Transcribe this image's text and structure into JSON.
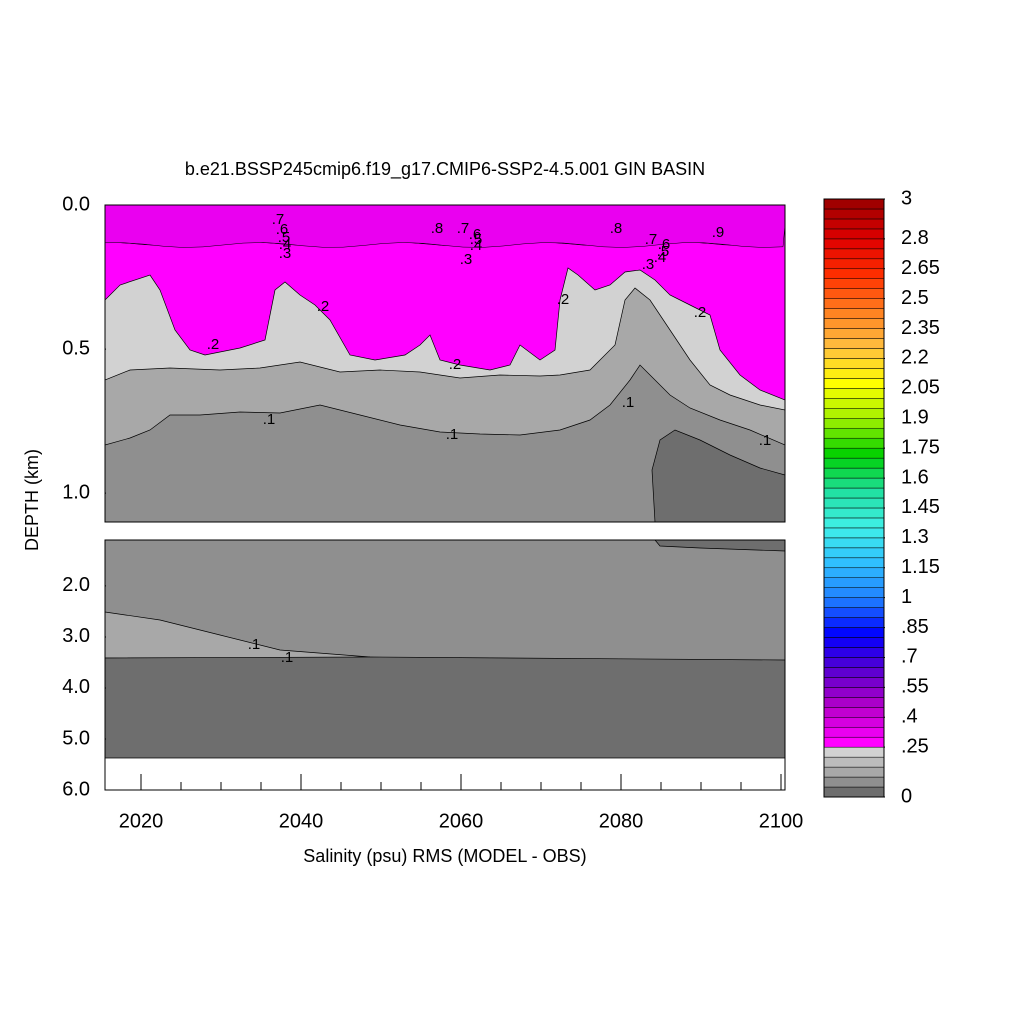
{
  "chart_data": {
    "type": "contour",
    "title": "b.e21.BSSP245cmip6.f19_g17.CMIP6-SSP2-4.5.001 GIN BASIN",
    "x_label": "Salinity (psu) RMS (MODEL - OBS)",
    "y_label": "DEPTH (km)",
    "xlim": [
      2015.5,
      2100.5
    ],
    "xticks": [
      2020,
      2040,
      2060,
      2080,
      2100
    ],
    "xminorticks": [
      2025,
      2030,
      2035,
      2045,
      2050,
      2055,
      2065,
      2070,
      2075,
      2085,
      2090,
      2095
    ],
    "panels": [
      {
        "ylim": [
          0,
          1.1
        ],
        "yticks": [
          {
            "value": 0,
            "label": "0.0"
          },
          {
            "value": 0.5,
            "label": "0.5"
          },
          {
            "value": 1,
            "label": "1.0"
          }
        ]
      },
      {
        "ylim": [
          1.1,
          6
        ],
        "yticks": [
          {
            "value": 2,
            "label": "2.0"
          },
          {
            "value": 3,
            "label": "3.0"
          },
          {
            "value": 4,
            "label": "4.0"
          },
          {
            "value": 5,
            "label": "5.0"
          },
          {
            "value": 6,
            "label": "6.0"
          }
        ]
      }
    ],
    "colorbar": {
      "lim": [
        0,
        3
      ],
      "step": 0.05,
      "ticks": [
        3,
        2.8,
        2.65,
        2.5,
        2.35,
        2.2,
        2.05,
        1.9,
        1.75,
        1.6,
        1.45,
        1.3,
        1.15,
        1,
        {
          "value": 0.85,
          "label": ".85"
        },
        {
          "value": 0.7,
          "label": ".7"
        },
        {
          "value": 0.55,
          "label": ".55"
        },
        {
          "value": 0.4,
          "label": ".4"
        },
        {
          "value": 0.25,
          "label": ".25"
        },
        0
      ],
      "gray_colors": [
        "#6e6e6e",
        "#8f8f8f",
        "#a8a8a8",
        "#bcbcbc",
        "#d2d2d2"
      ],
      "colormap": [
        "#ff00ff",
        "#b400c8",
        "#5a00d0",
        "#0000ff",
        "#2080ff",
        "#30c0ff",
        "#40f0e8",
        "#20e0a0",
        "#00d000",
        "#a0f000",
        "#ffff00",
        "#ffc040",
        "#ff8020",
        "#ff3000",
        "#e00000",
        "#a00000"
      ]
    },
    "contour_labels": [
      ".7",
      ".6",
      ".5",
      ".4",
      ".3",
      ".8",
      ".7",
      ".6",
      ".5",
      ".4",
      ".3",
      ".8",
      ".7",
      ".6",
      ".5",
      ".4",
      ".3",
      ".9",
      ".2",
      ".2",
      ".2",
      ".2",
      ".2",
      ".1",
      ".1",
      ".1",
      ".1",
      ".1",
      ".1"
    ]
  }
}
